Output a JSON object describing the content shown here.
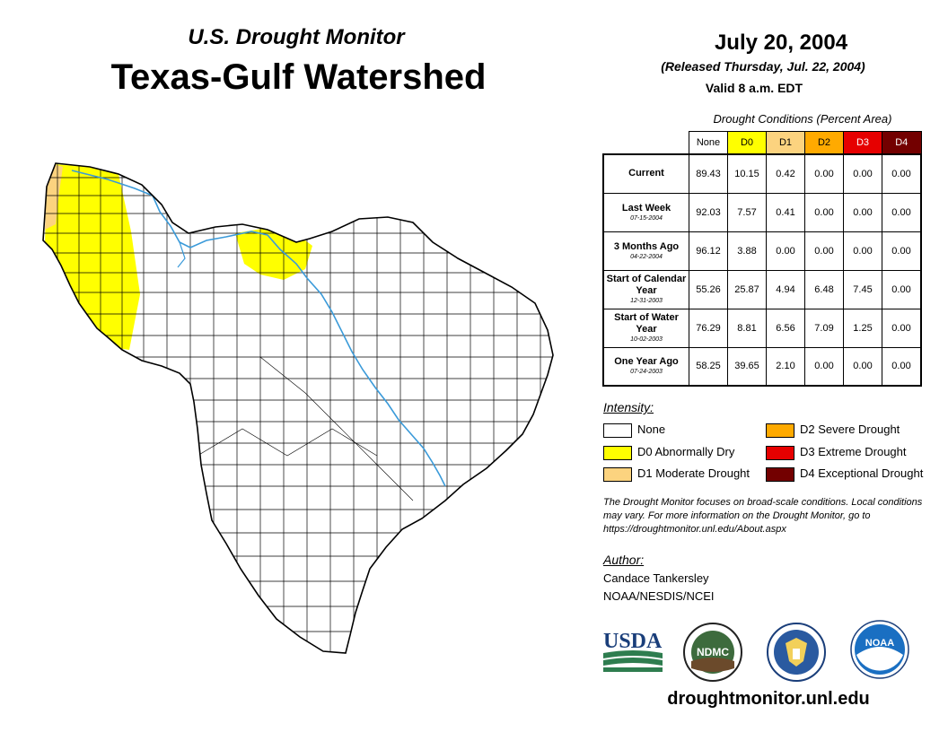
{
  "header": {
    "subtitle": "U.S. Drought Monitor",
    "title": "Texas-Gulf Watershed",
    "date": "July 20, 2004",
    "released": "(Released Thursday, Jul. 22, 2004)",
    "valid": "Valid 8 a.m. EDT"
  },
  "table": {
    "caption": "Drought Conditions (Percent Area)",
    "columns": [
      {
        "label": "None",
        "color": "#ffffff",
        "text_color": "#000000"
      },
      {
        "label": "D0",
        "color": "#ffff00",
        "text_color": "#000000"
      },
      {
        "label": "D1",
        "color": "#fcd37f",
        "text_color": "#000000"
      },
      {
        "label": "D2",
        "color": "#ffaa00",
        "text_color": "#000000"
      },
      {
        "label": "D3",
        "color": "#e60000",
        "text_color": "#ffffff"
      },
      {
        "label": "D4",
        "color": "#730000",
        "text_color": "#ffffff"
      }
    ],
    "rows": [
      {
        "label": "Current",
        "date": "",
        "values": [
          "89.43",
          "10.15",
          "0.42",
          "0.00",
          "0.00",
          "0.00"
        ]
      },
      {
        "label": "Last Week",
        "date": "07-15-2004",
        "values": [
          "92.03",
          "7.57",
          "0.41",
          "0.00",
          "0.00",
          "0.00"
        ]
      },
      {
        "label": "3 Months Ago",
        "date": "04-22-2004",
        "values": [
          "96.12",
          "3.88",
          "0.00",
          "0.00",
          "0.00",
          "0.00"
        ]
      },
      {
        "label": "Start of Calendar Year",
        "date": "12-31-2003",
        "values": [
          "55.26",
          "25.87",
          "4.94",
          "6.48",
          "7.45",
          "0.00"
        ]
      },
      {
        "label": "Start of Water Year",
        "date": "10-02-2003",
        "values": [
          "76.29",
          "8.81",
          "6.56",
          "7.09",
          "1.25",
          "0.00"
        ]
      },
      {
        "label": "One Year Ago",
        "date": "07-24-2003",
        "values": [
          "58.25",
          "39.65",
          "2.10",
          "0.00",
          "0.00",
          "0.00"
        ]
      }
    ]
  },
  "legend": {
    "title": "Intensity:",
    "items": [
      {
        "label": "None",
        "color": "#ffffff"
      },
      {
        "label": "D0 Abnormally Dry",
        "color": "#ffff00"
      },
      {
        "label": "D1 Moderate Drought",
        "color": "#fcd37f"
      },
      {
        "label": "D2 Severe Drought",
        "color": "#ffaa00"
      },
      {
        "label": "D3 Extreme Drought",
        "color": "#e60000"
      },
      {
        "label": "D4 Exceptional Drought",
        "color": "#730000"
      }
    ]
  },
  "blurb": "The Drought Monitor focuses on broad-scale conditions. Local conditions may vary. For more information on the Drought Monitor, go to https://droughtmonitor.unl.edu/About.aspx",
  "author": {
    "title": "Author:",
    "name": "Candace Tankersley",
    "org": "NOAA/NESDIS/NCEI"
  },
  "logos": {
    "usda": "USDA",
    "ndmc": "NDMC",
    "noaa": "NOAA"
  },
  "footer_url": "droughtmonitor.unl.edu",
  "map_colors": {
    "d0": "#ffff00",
    "d1": "#fcd37f",
    "river": "#3a9ad9",
    "boundary": "#000000"
  }
}
